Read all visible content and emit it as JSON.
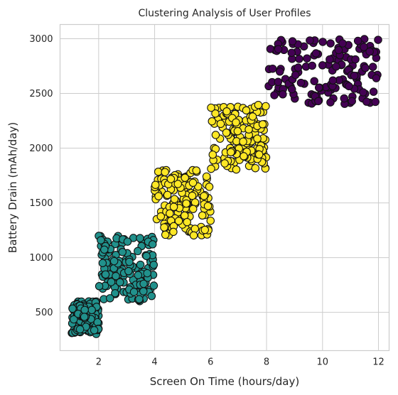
{
  "chart_data": {
    "type": "scatter",
    "title": "Clustering Analysis of User Profiles",
    "xlabel": "Screen On Time (hours/day)",
    "ylabel": "Battery Drain (mAh/day)",
    "xlim": [
      0.62,
      12.38
    ],
    "ylim": [
      150,
      3130
    ],
    "xticks": [
      2,
      4,
      6,
      8,
      10,
      12
    ],
    "yticks": [
      500,
      1000,
      1500,
      2000,
      2500,
      3000
    ],
    "grid": true,
    "legend": "none",
    "marker_edge_color": "#111111",
    "series": [
      {
        "cluster": 0,
        "color": "#440154",
        "count": 150,
        "x_range": [
          8.0,
          12.0
        ],
        "y_range": [
          2400,
          3000
        ]
      },
      {
        "cluster": 1,
        "color": "#21918c",
        "count": 150,
        "x_range": [
          1.0,
          2.0
        ],
        "y_range": [
          300,
          600
        ]
      },
      {
        "cluster": 1,
        "color": "#21918c",
        "count": 150,
        "x_range": [
          2.0,
          4.0
        ],
        "y_range": [
          600,
          1200
        ]
      },
      {
        "cluster": 2,
        "color": "#fde725",
        "count": 150,
        "x_range": [
          4.0,
          6.0
        ],
        "y_range": [
          1200,
          1800
        ]
      },
      {
        "cluster": 2,
        "color": "#fde725",
        "count": 150,
        "x_range": [
          6.0,
          8.0
        ],
        "y_range": [
          1800,
          2400
        ]
      }
    ]
  }
}
